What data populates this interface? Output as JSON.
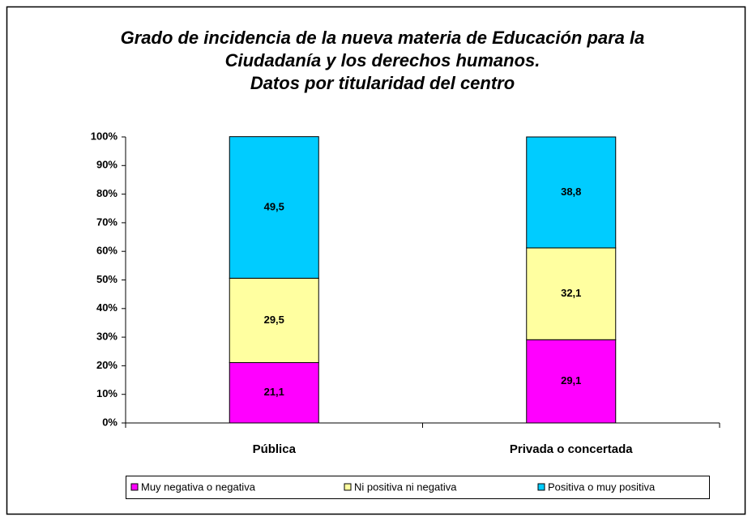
{
  "chart_data": {
    "type": "stacked_bar",
    "title": [
      "Grado de incidencia de la nueva materia de Educación para la",
      "Ciudadanía y los derechos humanos.",
      "Datos por titularidad del centro"
    ],
    "categories": [
      "Pública",
      "Privada o concertada"
    ],
    "series": [
      {
        "name": "Muy negativa o negativa",
        "color": "#ff00ff",
        "values": [
          21.1,
          29.1
        ],
        "value_labels": [
          "21,1",
          "29,1"
        ]
      },
      {
        "name": "Ni positiva ni negativa",
        "color": "#ffffa0",
        "values": [
          29.5,
          32.1
        ],
        "value_labels": [
          "29,5",
          "32,1"
        ]
      },
      {
        "name": "Positiva o muy positiva",
        "color": "#00ccff",
        "values": [
          49.5,
          38.8
        ],
        "value_labels": [
          "49,5",
          "38,8"
        ]
      }
    ],
    "ylim": [
      0,
      100
    ],
    "yticks": [
      {
        "value": 0,
        "label": "0%"
      },
      {
        "value": 10,
        "label": "10%"
      },
      {
        "value": 20,
        "label": "20%"
      },
      {
        "value": 30,
        "label": "30%"
      },
      {
        "value": 40,
        "label": "40%"
      },
      {
        "value": 50,
        "label": "50%"
      },
      {
        "value": 60,
        "label": "60%"
      },
      {
        "value": 70,
        "label": "70%"
      },
      {
        "value": 80,
        "label": "80%"
      },
      {
        "value": 90,
        "label": "90%"
      },
      {
        "value": 100,
        "label": "100%"
      }
    ],
    "legend": "bottom"
  }
}
